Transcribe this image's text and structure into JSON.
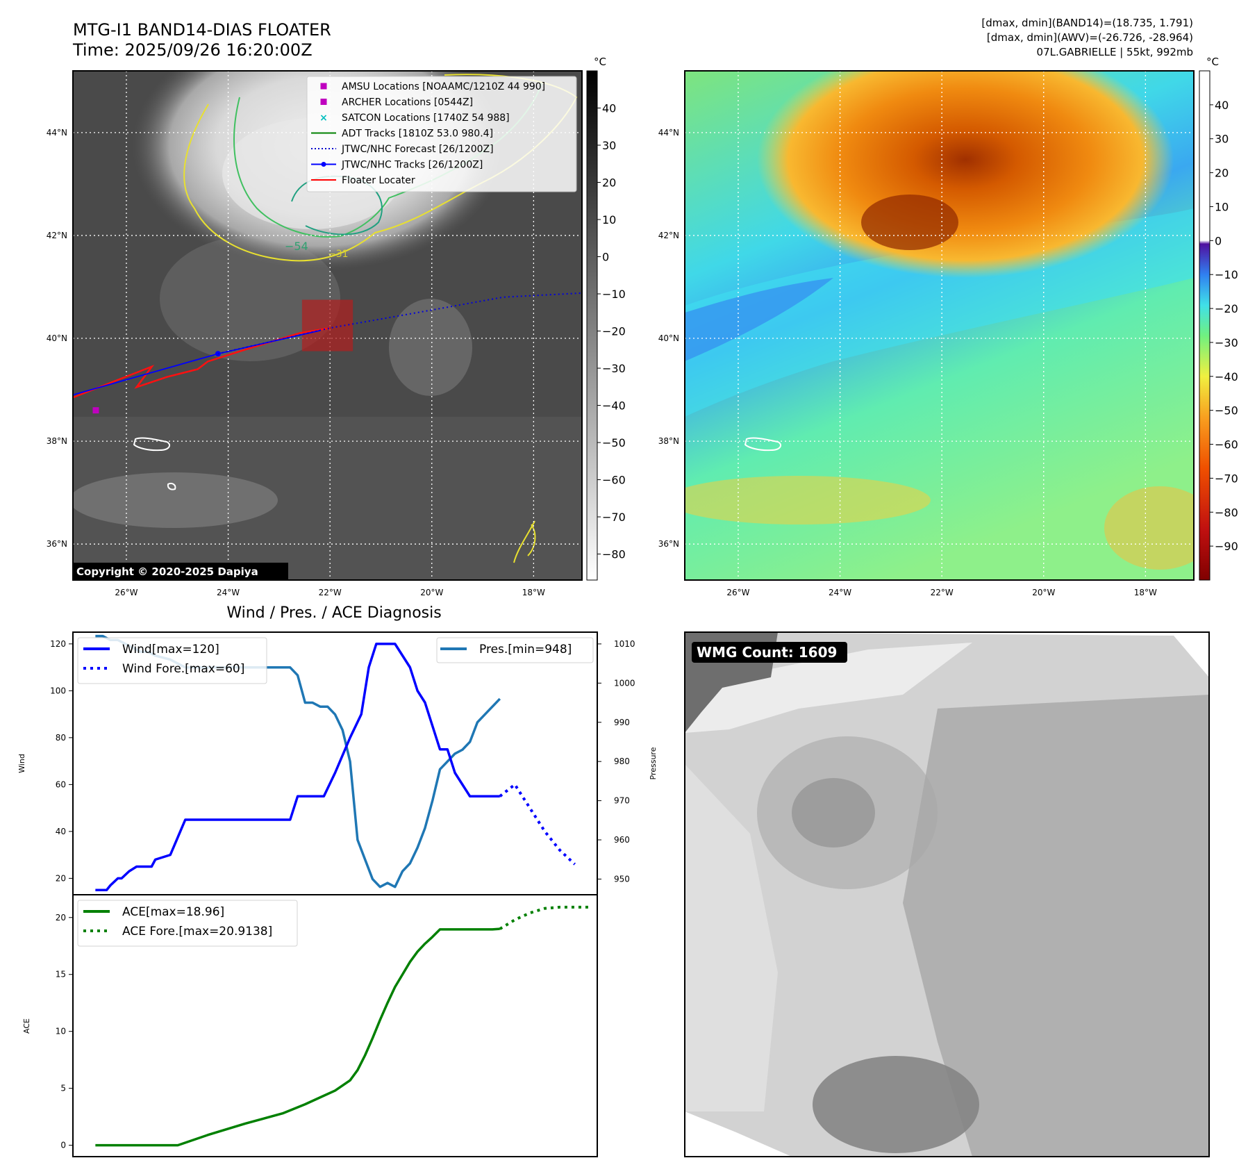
{
  "header": {
    "title_line1": "MTG-I1 BAND14-DIAS FLOATER",
    "title_line2": "Time: 2025/09/26 16:20:00Z",
    "stats_line1": "[dmax, dmin](BAND14)=(18.735, 1.791)",
    "stats_line2": "[dmax, dmin](AWV)=(-26.726, -28.964)",
    "stats_line3": "07L.GABRIELLE | 55kt, 992mb"
  },
  "map_axes": {
    "lat_ticks": [
      "44°N",
      "42°N",
      "40°N",
      "38°N",
      "36°N"
    ],
    "lat_values": [
      44,
      42,
      40,
      38,
      36
    ],
    "lon_ticks": [
      "26°W",
      "24°W",
      "22°W",
      "20°W",
      "18°W"
    ],
    "lon_values": [
      -26,
      -24,
      -22,
      -20,
      -18
    ],
    "lon_range": [
      -27.05,
      -17.05
    ],
    "lat_range": [
      35.3,
      45.2
    ]
  },
  "ir_panel": {
    "colorbar_unit": "°C",
    "colorbar_ticks": [
      "40",
      "30",
      "20",
      "10",
      "0",
      "−10",
      "−20",
      "−30",
      "−40",
      "−50",
      "−60",
      "−70",
      "−80"
    ],
    "colorbar_values": [
      40,
      30,
      20,
      10,
      0,
      -10,
      -20,
      -30,
      -40,
      -50,
      -60,
      -70,
      -80
    ],
    "colorbar_range": [
      -87,
      50
    ],
    "contour_labels": [
      "−54",
      "−31"
    ],
    "copyright": "Copyright © 2020-2025 Dapiya",
    "legend": [
      {
        "label": "AMSU Locations [NOAAMC/1210Z 44 990]",
        "marker": "square",
        "color": "#bf00bf"
      },
      {
        "label": "ARCHER Locations [0544Z]",
        "marker": "square",
        "color": "#bf00bf"
      },
      {
        "label": "SATCON Locations [1740Z 54 988]",
        "marker": "x",
        "color": "#00bfbf"
      },
      {
        "label": "ADT Tracks [1810Z 53.0 980.4]",
        "marker": "line",
        "color": "#008000"
      },
      {
        "label": "JTWC/NHC Forecast [26/1200Z]",
        "marker": "dotted",
        "color": "#0000cc"
      },
      {
        "label": "JTWC/NHC Tracks [26/1200Z]",
        "marker": "line-dot",
        "color": "#0000ff"
      },
      {
        "label": "Floater Locater",
        "marker": "line",
        "color": "#ff0000"
      }
    ],
    "jtwc_track": [
      [
        -27.05,
        38.9
      ],
      [
        -24.2,
        39.7
      ],
      [
        -22.2,
        40.15
      ]
    ],
    "jtwc_forecast": [
      [
        -24.2,
        39.7
      ],
      [
        -22.0,
        40.2
      ],
      [
        -20.0,
        40.55
      ],
      [
        -18.6,
        40.8
      ],
      [
        -17.05,
        40.88
      ]
    ],
    "amsu_point": [
      -26.6,
      38.6
    ],
    "floater_box": {
      "lon": [
        -22.55,
        -21.55
      ],
      "lat": [
        39.75,
        40.75
      ]
    },
    "red_track": [
      [
        -27.05,
        38.85
      ],
      [
        -25.5,
        39.45
      ],
      [
        -25.8,
        39.05
      ],
      [
        -25.2,
        39.25
      ],
      [
        -24.6,
        39.4
      ],
      [
        -24.4,
        39.55
      ],
      [
        -23.6,
        39.8
      ],
      [
        -22.6,
        40.1
      ],
      [
        -22.0,
        40.2
      ]
    ]
  },
  "awv_panel": {
    "colorbar_unit": "°C",
    "colorbar_ticks": [
      "40",
      "30",
      "20",
      "10",
      "0",
      "−10",
      "−20",
      "−30",
      "−40",
      "−50",
      "−60",
      "−70",
      "−80",
      "−90"
    ],
    "colorbar_values": [
      40,
      30,
      20,
      10,
      0,
      -10,
      -20,
      -30,
      -40,
      -50,
      -60,
      -70,
      -80,
      -90
    ],
    "colorbar_range": [
      -100,
      50
    ]
  },
  "chart_data": [
    {
      "type": "line",
      "title": "Wind / Pres. / ACE Diagnosis",
      "ylabel": "Wind",
      "ylabel_right": "Pressure",
      "ylim": [
        13,
        125
      ],
      "ylim_right": [
        946,
        1013
      ],
      "yticks": [
        20,
        40,
        60,
        80,
        100,
        120
      ],
      "yticks_right": [
        950,
        960,
        970,
        980,
        990,
        1000,
        1010
      ],
      "x": [
        0,
        1,
        2,
        3,
        4,
        5,
        6,
        7,
        8,
        9,
        10,
        11,
        12,
        13,
        14,
        15,
        16,
        17,
        18,
        19,
        20,
        21,
        22,
        23,
        24,
        25,
        26,
        27,
        28,
        29,
        30,
        31,
        32,
        33,
        34,
        35,
        36,
        37,
        38,
        39,
        40,
        41,
        42,
        43,
        44,
        45,
        46,
        47,
        48,
        49,
        50,
        51,
        52,
        53
      ],
      "xlim": [
        -3,
        67
      ],
      "series": [
        {
          "name": "Wind[max=120]",
          "color": "#0000ff",
          "style": "solid",
          "x": [
            0,
            1.5,
            2,
            3,
            3.5,
            4.5,
            5.5,
            6.5,
            7.5,
            8,
            10,
            12,
            13,
            14,
            16,
            18,
            20,
            22,
            24,
            26,
            27,
            28,
            29,
            30,
            30.5,
            32,
            34,
            35.5,
            36,
            36.5,
            37,
            37.5,
            38,
            38.5,
            39,
            40,
            41,
            42,
            43,
            44,
            45,
            46,
            47,
            48,
            49,
            50,
            51,
            52,
            53,
            54
          ],
          "values": [
            15,
            15,
            17,
            20,
            20,
            23,
            25,
            25,
            25,
            28,
            30,
            45,
            45,
            45,
            45,
            45,
            45,
            45,
            45,
            45,
            55,
            55,
            55,
            55,
            55,
            65,
            80,
            90,
            100,
            110,
            115,
            120,
            120,
            120,
            120,
            120,
            115,
            110,
            100,
            95,
            85,
            75,
            75,
            65,
            60,
            55,
            55,
            55,
            55,
            55
          ]
        },
        {
          "name": "Wind Fore.[max=60]",
          "color": "#0000ff",
          "style": "dotted",
          "x": [
            54,
            56,
            58,
            60,
            62,
            64
          ],
          "values": [
            55,
            60,
            50,
            40,
            32,
            26
          ]
        }
      ],
      "series_right": [
        {
          "name": "Pres.[min=948]",
          "color": "#1f77b4",
          "style": "solid",
          "x": [
            0,
            1,
            2,
            3,
            4,
            5,
            6,
            7,
            8,
            10,
            12,
            14,
            16,
            18,
            20,
            22,
            24,
            26,
            27,
            28,
            29,
            30,
            31,
            32,
            33,
            34,
            35,
            36,
            37,
            38,
            39,
            40,
            41,
            42,
            43,
            44,
            45,
            46,
            47,
            48,
            49,
            50,
            51,
            52,
            53,
            54
          ],
          "values": [
            1012,
            1012,
            1011,
            1011,
            1010,
            1009,
            1008,
            1008,
            1007,
            1006,
            1004,
            1004,
            1004,
            1004,
            1004,
            1004,
            1004,
            1004,
            1002,
            995,
            995,
            994,
            994,
            992,
            988,
            980,
            960,
            955,
            950,
            948,
            949,
            948,
            952,
            954,
            958,
            963,
            970,
            978,
            980,
            982,
            983,
            985,
            990,
            992,
            994,
            996
          ]
        }
      ],
      "legend": [
        {
          "label": "Wind[max=120]",
          "style": "solid",
          "color": "#0000ff"
        },
        {
          "label": "Wind Fore.[max=60]",
          "style": "dotted",
          "color": "#0000ff"
        }
      ],
      "legend_right": [
        {
          "label": "Pres.[min=948]",
          "style": "solid",
          "color": "#1f77b4"
        }
      ]
    },
    {
      "type": "line",
      "title": "",
      "ylabel": "ACE",
      "ylim": [
        -1,
        22
      ],
      "yticks": [
        0,
        5,
        10,
        15,
        20
      ],
      "xlim": [
        -3,
        67
      ],
      "series": [
        {
          "name": "ACE[max=18.96]",
          "color": "#008000",
          "style": "solid",
          "x": [
            0,
            11,
            15,
            20,
            25,
            28,
            30,
            32,
            34,
            35,
            36,
            37,
            38,
            39,
            40,
            41,
            42,
            43,
            44,
            45,
            46,
            47,
            48,
            49,
            50,
            51,
            52,
            53,
            54
          ],
          "values": [
            0,
            0,
            0.9,
            1.9,
            2.8,
            3.6,
            4.2,
            4.8,
            5.7,
            6.6,
            7.9,
            9.4,
            11.0,
            12.5,
            13.9,
            15.0,
            16.1,
            17.0,
            17.7,
            18.3,
            18.96,
            18.96,
            18.96,
            18.96,
            18.96,
            18.96,
            18.96,
            18.96,
            19.0
          ]
        },
        {
          "name": "ACE Fore.[max=20.9138]",
          "color": "#008000",
          "style": "dotted",
          "x": [
            54,
            56,
            58,
            60,
            62,
            64,
            66
          ],
          "values": [
            19.0,
            19.8,
            20.4,
            20.8,
            20.91,
            20.91,
            20.91
          ]
        }
      ],
      "legend": [
        {
          "label": "ACE[max=18.96]",
          "style": "solid",
          "color": "#008000"
        },
        {
          "label": "ACE Fore.[max=20.9138]",
          "style": "dotted",
          "color": "#008000"
        }
      ]
    }
  ],
  "wmg_panel": {
    "count_label": "WMG Count: 1609"
  }
}
